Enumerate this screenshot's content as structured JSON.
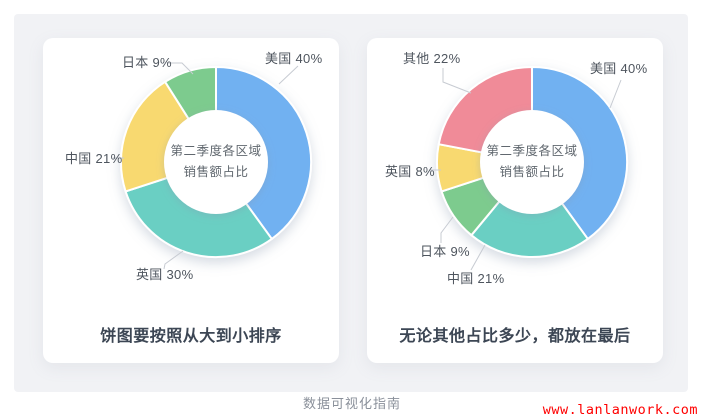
{
  "colors": {
    "background": "#F1F2F5",
    "card": "#FFFFFF",
    "label_text": "#4E555E",
    "caption_text": "#3C4654",
    "center_text": "#61686F",
    "leader_line": "#C7CBD2",
    "footer_text": "#8A909A",
    "watermark_red": "#FF0000",
    "slice_blue": "#71B1F1",
    "slice_teal": "#6BCFC3",
    "slice_yellow": "#F8D96F",
    "slice_green": "#7DCB8E",
    "slice_red": "#F08B98"
  },
  "chart_data": [
    {
      "type": "pie",
      "subtype": "donut",
      "title": "第二季度各区域销售额占比",
      "center_label_lines": [
        "第二季度各区域",
        "销售额占比"
      ],
      "caption": "饼图要按照从大到小排序",
      "categories": [
        "美国",
        "英国",
        "中国",
        "日本"
      ],
      "values": [
        40,
        30,
        21,
        9
      ],
      "unit": "%",
      "labels": [
        "美国 40%",
        "英国 30%",
        "中国 21%",
        "日本 9%"
      ],
      "colors": [
        "#71B1F1",
        "#6BCFC3",
        "#F8D96F",
        "#7DCB8E"
      ],
      "start_angle": "12 o'clock",
      "direction": "clockwise",
      "legend_position": "outside-labels-with-leader-lines"
    },
    {
      "type": "pie",
      "subtype": "donut",
      "title": "第二季度各区域销售额占比",
      "center_label_lines": [
        "第二季度各区域",
        "销售额占比"
      ],
      "caption": "无论其他占比多少，都放在最后",
      "categories": [
        "美国",
        "中国",
        "日本",
        "英国",
        "其他"
      ],
      "values": [
        40,
        21,
        9,
        8,
        22
      ],
      "unit": "%",
      "labels": [
        "美国 40%",
        "中国 21%",
        "日本 9%",
        "英国 8%",
        "其他 22%"
      ],
      "colors": [
        "#71B1F1",
        "#6BCFC3",
        "#7DCB8E",
        "#F8D96F",
        "#F08B98"
      ],
      "start_angle": "12 o'clock",
      "direction": "clockwise",
      "legend_position": "outside-labels-with-leader-lines"
    }
  ],
  "footer": {
    "title": "数据可视化指南",
    "watermark": "www.lanlanwork.com"
  }
}
